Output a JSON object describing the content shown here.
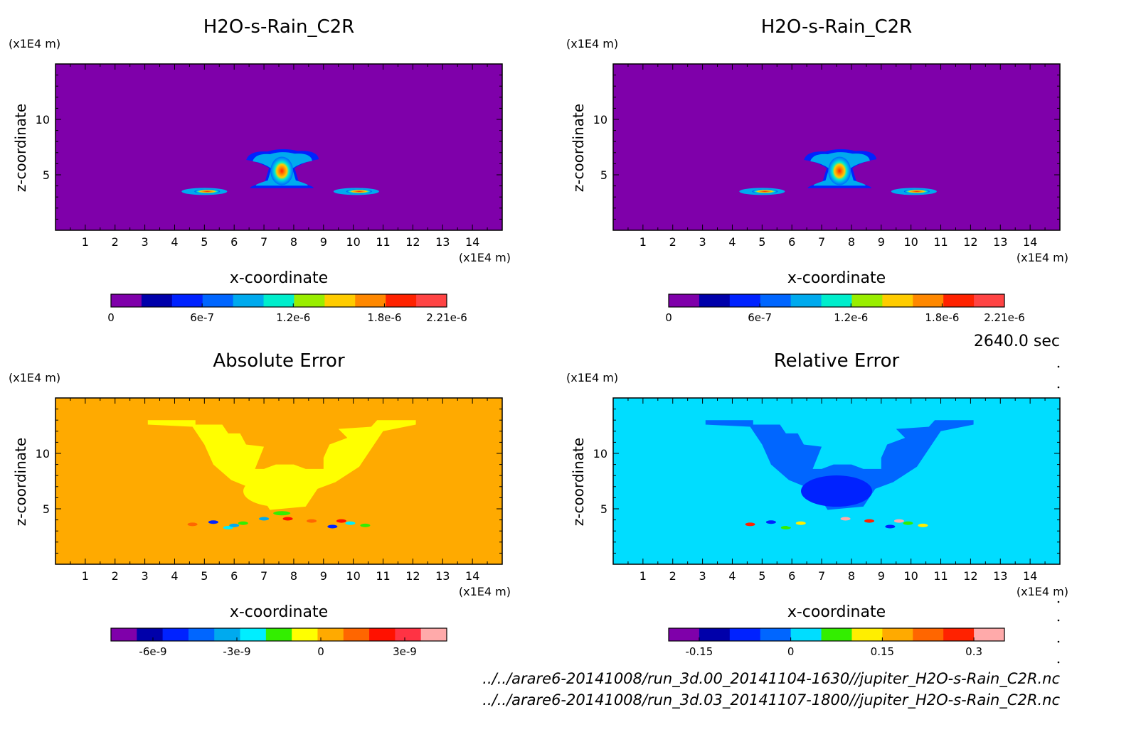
{
  "figure": {
    "time_label": "2640.0 sec",
    "file_paths": [
      "../../arare6-20141008/run_3d.00_20141104-1630//jupiter_H2O-s-Rain_C2R.nc",
      "../../arare6-20141008/run_3d.03_20141107-1800//jupiter_H2O-s-Rain_C2R.nc"
    ]
  },
  "colors": {
    "background_field_top": "#7f00aa",
    "background_field_abs": "#ffaa00",
    "background_field_rel": "#00ddff"
  },
  "chart_data": [
    {
      "type": "heatmap",
      "title": "H2O-s-Rain_C2R",
      "xlabel": "x-coordinate",
      "ylabel": "z-coordinate",
      "x_unit": "(x1E4 m)",
      "y_unit": "(x1E4 m)",
      "xlim": [
        0,
        15
      ],
      "ylim": [
        0,
        15
      ],
      "x_ticks": [
        1,
        2,
        3,
        4,
        5,
        6,
        7,
        8,
        9,
        10,
        11,
        12,
        13,
        14
      ],
      "y_ticks": [
        5,
        10
      ],
      "colorbar": {
        "range": [
          0,
          2.21e-06
        ],
        "tick_labels": [
          "0",
          "6e-7",
          "1.2e-6",
          "1.8e-6",
          "2.21e-6"
        ],
        "tick_values": [
          0,
          6e-07,
          1.2e-06,
          1.8e-06,
          2.21e-06
        ],
        "colors": [
          "#7f00aa",
          "#0000aa",
          "#0022ff",
          "#0066ff",
          "#00aaee",
          "#00eecc",
          "#99ee00",
          "#ffcc00",
          "#ff8800",
          "#ff2200",
          "#ff4444"
        ]
      },
      "features": [
        {
          "name": "central core",
          "x": 7.6,
          "z": 5.3,
          "peak": 2.2e-06
        },
        {
          "name": "left band",
          "x": 5.0,
          "z": 3.5,
          "peak": 1.9e-06
        },
        {
          "name": "right band",
          "x": 10.1,
          "z": 3.5,
          "peak": 1.9e-06
        }
      ]
    },
    {
      "type": "heatmap",
      "title": "H2O-s-Rain_C2R",
      "xlabel": "x-coordinate",
      "ylabel": "z-coordinate",
      "x_unit": "(x1E4 m)",
      "y_unit": "(x1E4 m)",
      "xlim": [
        0,
        15
      ],
      "ylim": [
        0,
        15
      ],
      "x_ticks": [
        1,
        2,
        3,
        4,
        5,
        6,
        7,
        8,
        9,
        10,
        11,
        12,
        13,
        14
      ],
      "y_ticks": [
        5,
        10
      ],
      "colorbar": {
        "range": [
          0,
          2.21e-06
        ],
        "tick_labels": [
          "0",
          "6e-7",
          "1.2e-6",
          "1.8e-6",
          "2.21e-6"
        ],
        "tick_values": [
          0,
          6e-07,
          1.2e-06,
          1.8e-06,
          2.21e-06
        ],
        "colors": [
          "#7f00aa",
          "#0000aa",
          "#0022ff",
          "#0066ff",
          "#00aaee",
          "#00eecc",
          "#99ee00",
          "#ffcc00",
          "#ff8800",
          "#ff2200",
          "#ff4444"
        ]
      },
      "features": [
        {
          "name": "central core",
          "x": 7.6,
          "z": 5.3,
          "peak": 2.2e-06
        },
        {
          "name": "left band",
          "x": 5.0,
          "z": 3.5,
          "peak": 1.9e-06
        },
        {
          "name": "right band",
          "x": 10.1,
          "z": 3.5,
          "peak": 1.9e-06
        }
      ]
    },
    {
      "type": "heatmap",
      "title": "Absolute Error",
      "xlabel": "x-coordinate",
      "ylabel": "z-coordinate",
      "x_unit": "(x1E4 m)",
      "y_unit": "(x1E4 m)",
      "xlim": [
        0,
        15
      ],
      "ylim": [
        0,
        15
      ],
      "x_ticks": [
        1,
        2,
        3,
        4,
        5,
        6,
        7,
        8,
        9,
        10,
        11,
        12,
        13,
        14
      ],
      "y_ticks": [
        5,
        10
      ],
      "colorbar": {
        "range": [
          -7.5e-09,
          4.5e-09
        ],
        "tick_labels": [
          "-6e-9",
          "-3e-9",
          "0",
          "3e-9"
        ],
        "tick_values": [
          -6e-09,
          -3e-09,
          0,
          3e-09
        ],
        "colors": [
          "#7f00aa",
          "#0000aa",
          "#0022ff",
          "#0066ff",
          "#00aaee",
          "#00eeff",
          "#33ee00",
          "#ffff00",
          "#ffaa00",
          "#ff6600",
          "#ff1100",
          "#ff3344",
          "#ffaaaa"
        ]
      },
      "background_value": 0
    },
    {
      "type": "heatmap",
      "title": "Relative Error",
      "xlabel": "x-coordinate",
      "ylabel": "z-coordinate",
      "x_unit": "(x1E4 m)",
      "y_unit": "(x1E4 m)",
      "xlim": [
        0,
        15
      ],
      "ylim": [
        0,
        15
      ],
      "x_ticks": [
        1,
        2,
        3,
        4,
        5,
        6,
        7,
        8,
        9,
        10,
        11,
        12,
        13,
        14
      ],
      "y_ticks": [
        5,
        10
      ],
      "colorbar": {
        "range": [
          -0.2,
          0.35
        ],
        "tick_labels": [
          "-0.15",
          "0",
          "0.15",
          "0.3"
        ],
        "tick_values": [
          -0.15,
          0,
          0.15,
          0.3
        ],
        "colors": [
          "#7f00aa",
          "#0000aa",
          "#0022ff",
          "#0066ff",
          "#00ddff",
          "#33ee00",
          "#ffee00",
          "#ffaa00",
          "#ff6600",
          "#ff2200",
          "#ffaaaa"
        ]
      },
      "background_value": 0
    }
  ]
}
